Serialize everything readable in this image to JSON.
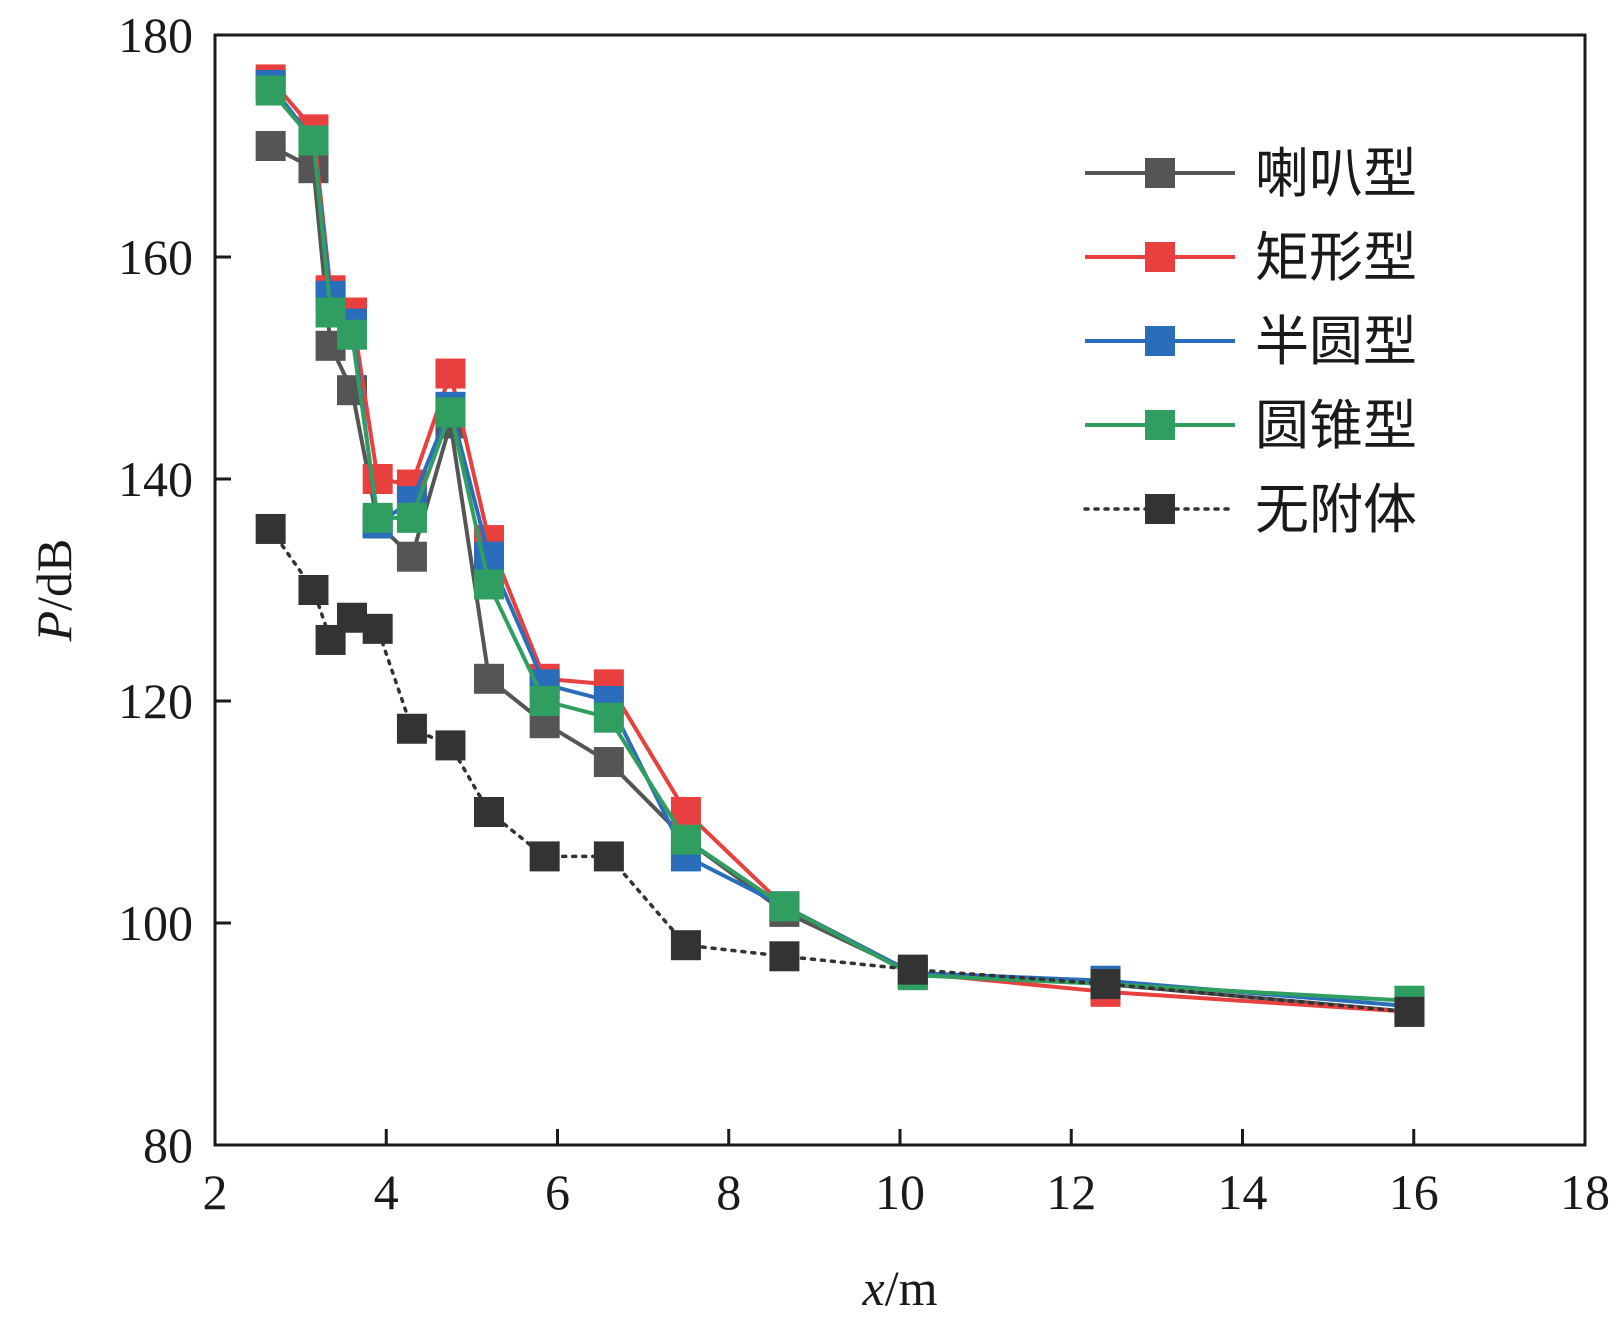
{
  "chart_data": {
    "type": "line",
    "xlabel": {
      "italic": "x",
      "unit": "/m"
    },
    "ylabel": {
      "italic": "P",
      "unit": "/dB"
    },
    "xlim": [
      2,
      18
    ],
    "ylim": [
      80,
      180
    ],
    "x_ticks": [
      "2",
      "4",
      "6",
      "8",
      "10",
      "12",
      "14",
      "16",
      "18"
    ],
    "y_ticks": [
      "80",
      "100",
      "120",
      "140",
      "160",
      "180"
    ],
    "legend_position": "top-right",
    "grid": false,
    "series": [
      {
        "name": "喇叭型",
        "color": "#555555",
        "linestyle": "solid",
        "x": [
          2.65,
          3.15,
          3.35,
          3.6,
          3.9,
          4.3,
          4.75,
          5.2,
          5.85,
          6.6,
          7.5,
          8.65,
          10.15,
          12.4,
          15.95
        ],
        "y": [
          170.0,
          168.0,
          152.0,
          148.0,
          136.0,
          133.0,
          145.0,
          122.0,
          118.0,
          114.5,
          107.5,
          101.0,
          95.5,
          94.5,
          92.0
        ]
      },
      {
        "name": "矩形型",
        "color": "#e8403f",
        "linestyle": "solid",
        "x": [
          2.65,
          3.15,
          3.35,
          3.6,
          3.9,
          4.3,
          4.75,
          5.2,
          5.85,
          6.6,
          7.5,
          8.65,
          10.15,
          12.4,
          15.95
        ],
        "y": [
          176.0,
          171.5,
          157.0,
          155.0,
          140.0,
          139.5,
          149.5,
          134.5,
          122.0,
          121.5,
          110.0,
          101.5,
          95.5,
          93.8,
          92.0
        ]
      },
      {
        "name": "半圆型",
        "color": "#2a6ebb",
        "linestyle": "solid",
        "x": [
          2.65,
          3.15,
          3.35,
          3.6,
          3.9,
          4.3,
          4.75,
          5.2,
          5.85,
          6.6,
          7.5,
          8.65,
          10.15,
          12.4,
          15.95
        ],
        "y": [
          175.5,
          170.5,
          156.5,
          154.0,
          136.0,
          138.0,
          146.5,
          133.0,
          121.5,
          120.0,
          106.0,
          101.5,
          95.5,
          94.8,
          92.5
        ]
      },
      {
        "name": "圆锥型",
        "color": "#2f9e60",
        "linestyle": "solid",
        "x": [
          2.65,
          3.15,
          3.35,
          3.6,
          3.9,
          4.3,
          4.75,
          5.2,
          5.85,
          6.6,
          7.5,
          8.65,
          10.15,
          12.4,
          15.95
        ],
        "y": [
          175.0,
          170.5,
          155.0,
          153.0,
          136.5,
          136.5,
          146.0,
          130.5,
          120.0,
          118.5,
          107.5,
          101.5,
          95.3,
          94.5,
          93.0
        ]
      },
      {
        "name": "无附体",
        "color": "#333333",
        "linestyle": "dotted",
        "x": [
          2.65,
          3.15,
          3.35,
          3.6,
          3.9,
          4.3,
          4.75,
          5.2,
          5.85,
          6.6,
          7.5,
          8.65,
          10.15,
          12.4,
          15.95
        ],
        "y": [
          135.5,
          130.0,
          125.5,
          127.5,
          126.5,
          117.5,
          116.0,
          110.0,
          106.0,
          106.0,
          98.0,
          97.0,
          95.8,
          94.5,
          92.0
        ]
      }
    ]
  }
}
